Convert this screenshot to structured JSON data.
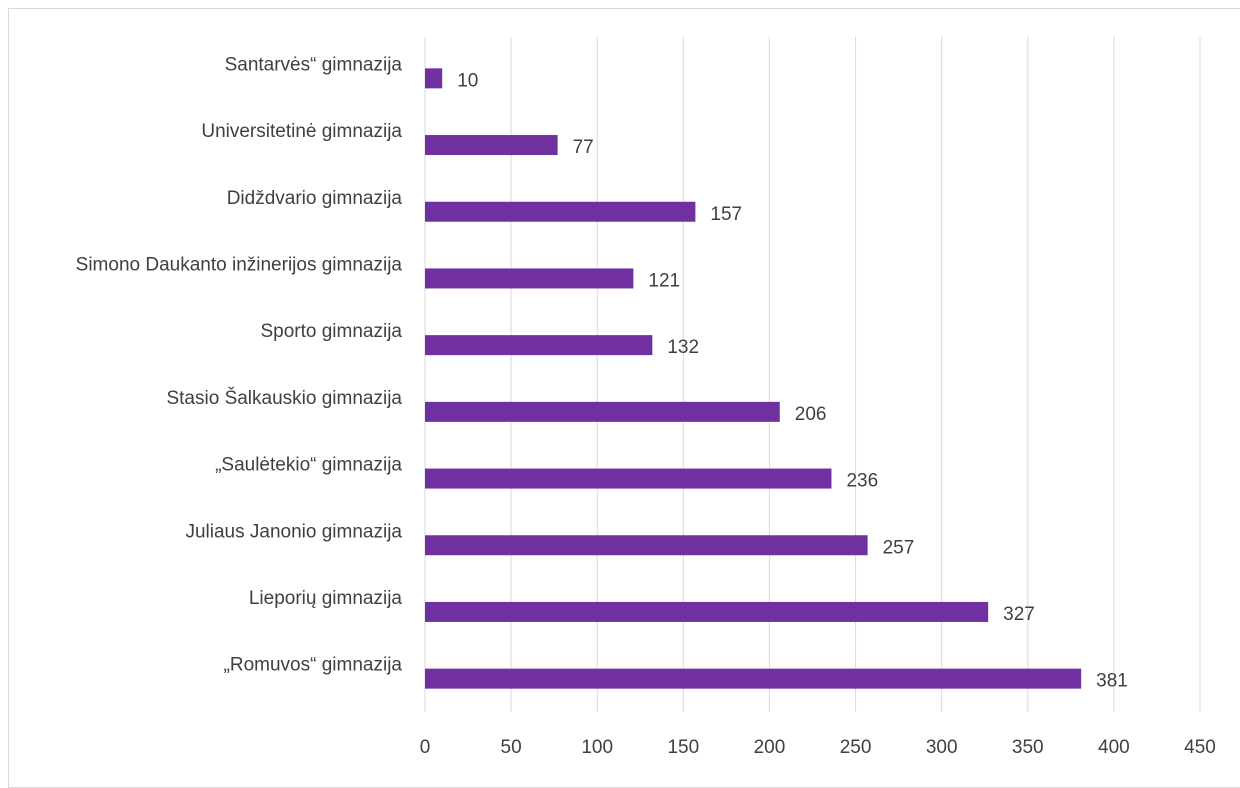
{
  "chart_data": {
    "type": "bar",
    "orientation": "horizontal",
    "categories": [
      "Santarvės“ gimnazija",
      "Universitetinė gimnazija",
      "Didždvario gimnazija",
      "Simono Daukanto inžinerijos gimnazija",
      "Sporto gimnazija",
      "Stasio Šalkauskio gimnazija",
      "„Saulėtekio“ gimnazija",
      "Juliaus Janonio gimnazija",
      "Lieporių gimnazija",
      "„Romuvos“ gimnazija"
    ],
    "values": [
      10,
      77,
      157,
      121,
      132,
      206,
      236,
      257,
      327,
      381
    ],
    "data_labels": [
      "10",
      "77",
      "157",
      "121",
      "132",
      "206",
      "236",
      "257",
      "327",
      "381"
    ],
    "xlim": [
      0,
      450
    ],
    "x_ticks": [
      "0",
      "50",
      "100",
      "150",
      "200",
      "250",
      "300",
      "350",
      "400",
      "450"
    ],
    "grid": "vertical",
    "legend": "none",
    "bar_color": "#7030a0"
  }
}
